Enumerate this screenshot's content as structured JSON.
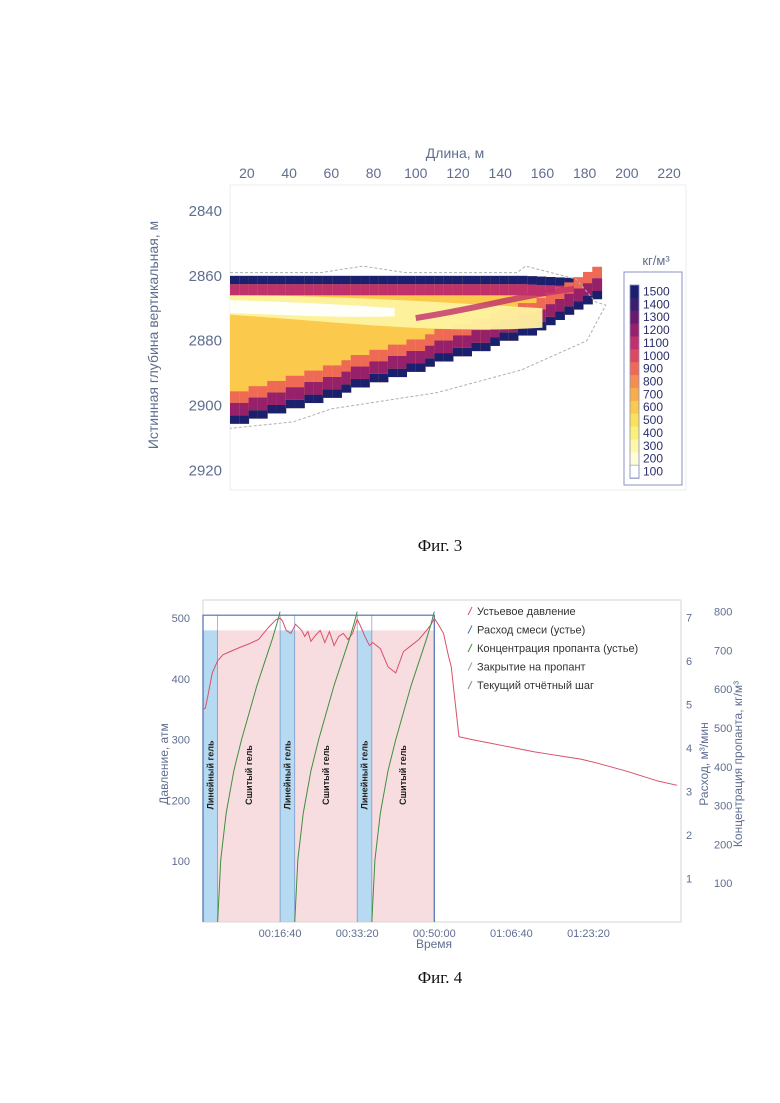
{
  "figure3": {
    "caption": "Фиг. 3",
    "chart_data": {
      "type": "heatmap",
      "xlabel": "Длина, м",
      "ylabel": "Истинная глубина вертикальная, м",
      "x_ticks": [
        20,
        40,
        60,
        80,
        100,
        120,
        140,
        160,
        180,
        200,
        220
      ],
      "y_ticks": [
        2840,
        2860,
        2880,
        2900,
        2920
      ],
      "xlim": [
        12,
        228
      ],
      "ylim": [
        2832,
        2926
      ],
      "colorbar": {
        "title": "кг/м³",
        "ticks": [
          1500,
          1400,
          1300,
          1200,
          1100,
          1000,
          900,
          800,
          700,
          600,
          500,
          400,
          300,
          200,
          100
        ],
        "colors": [
          "#1a1f6e",
          "#3a1f6e",
          "#6a1a6a",
          "#97206a",
          "#c0306a",
          "#dd4a60",
          "#ee6a55",
          "#f58d4f",
          "#f8ad4a",
          "#fbc94c",
          "#fde05a",
          "#fdf07a",
          "#fef8a8",
          "#fffcd8",
          "#ffffff"
        ]
      }
    }
  },
  "figure4": {
    "caption": "Фиг. 4",
    "chart_data": {
      "type": "line",
      "xlabel": "Время",
      "x_ticks": [
        "00:16:40",
        "00:33:20",
        "00:50:00",
        "01:06:40",
        "01:23:20"
      ],
      "x_tick_seconds": [
        1000,
        2000,
        3000,
        4000,
        5000
      ],
      "xlim": [
        0,
        6200
      ],
      "y_left": {
        "label": "Давление, атм",
        "ticks": [
          100,
          200,
          300,
          400,
          500
        ],
        "range": [
          0,
          530
        ]
      },
      "y_right1": {
        "label": "Расход, м³/мин",
        "ticks": [
          1,
          2,
          3,
          4,
          5,
          6,
          7
        ],
        "range": [
          0,
          7.4
        ]
      },
      "y_right2": {
        "label": "Концентрация пропанта, кг/м³",
        "ticks": [
          100,
          200,
          300,
          400,
          500,
          600,
          700,
          800
        ],
        "range": [
          0,
          830
        ]
      },
      "legend": [
        "Устьевое давление",
        "Расход смеси (устье)",
        "Концентрация пропанта (устье)",
        "Закрытие на пропант",
        "Текущий отчётный шаг"
      ],
      "stage_labels": [
        "Линейный гель",
        "Сшитый гель",
        "Линейный гель",
        "Сшитый гель",
        "Линейный гель",
        "Сшитый гель"
      ],
      "stages": [
        {
          "label_index": 0,
          "type": "linear",
          "start": 0,
          "end": 190
        },
        {
          "label_index": 1,
          "type": "crosslinked",
          "start": 190,
          "end": 1000
        },
        {
          "label_index": 2,
          "type": "linear",
          "start": 1000,
          "end": 1190
        },
        {
          "label_index": 3,
          "type": "crosslinked",
          "start": 1190,
          "end": 2000
        },
        {
          "label_index": 4,
          "type": "linear",
          "start": 2000,
          "end": 2190
        },
        {
          "label_index": 5,
          "type": "crosslinked",
          "start": 2190,
          "end": 3000
        }
      ],
      "series": [
        {
          "name": "Устьевое давление",
          "color": "#d9506a",
          "x": [
            0,
            30,
            60,
            120,
            190,
            260,
            350,
            480,
            600,
            720,
            850,
            950,
            1000,
            1030,
            1080,
            1140,
            1200,
            1280,
            1320,
            1360,
            1400,
            1460,
            1520,
            1580,
            1640,
            1700,
            1760,
            1820,
            1880,
            1940,
            2000,
            2040,
            2100,
            2160,
            2200,
            2300,
            2400,
            2500,
            2600,
            2700,
            2800,
            2900,
            2960,
            3000,
            3060,
            3120,
            3180,
            3220,
            3320,
            3500,
            3700,
            3900,
            4100,
            4300,
            4500,
            4700,
            4900,
            5100,
            5300,
            5500,
            5700,
            5900,
            6150
          ],
          "y": [
            350,
            352,
            370,
            410,
            430,
            440,
            445,
            452,
            458,
            465,
            485,
            498,
            500,
            496,
            480,
            475,
            490,
            480,
            470,
            478,
            462,
            472,
            480,
            460,
            478,
            455,
            470,
            475,
            465,
            475,
            498,
            488,
            470,
            455,
            460,
            450,
            420,
            410,
            445,
            455,
            465,
            480,
            490,
            500,
            488,
            475,
            440,
            420,
            305,
            300,
            295,
            290,
            285,
            280,
            276,
            272,
            268,
            262,
            255,
            248,
            240,
            232,
            225
          ]
        },
        {
          "name": "Концентрация пропанта (устье)",
          "color": "#3f8f3f",
          "axis": "y_right2",
          "segments": [
            {
              "x": [
                190,
                230,
                300,
                400,
                500,
                600,
                700,
                800,
                900,
                960,
                1000
              ],
              "y": [
                0,
                160,
                280,
                390,
                470,
                540,
                610,
                670,
                730,
                770,
                800
              ]
            },
            {
              "x": [
                1190,
                1230,
                1300,
                1400,
                1500,
                1600,
                1700,
                1800,
                1900,
                1960,
                2000
              ],
              "y": [
                0,
                160,
                280,
                390,
                470,
                540,
                610,
                670,
                730,
                770,
                800
              ]
            },
            {
              "x": [
                2190,
                2230,
                2300,
                2400,
                2500,
                2600,
                2700,
                2800,
                2900,
                2960,
                3000
              ],
              "y": [
                0,
                160,
                280,
                390,
                470,
                540,
                610,
                670,
                730,
                770,
                800
              ]
            }
          ]
        }
      ]
    }
  }
}
